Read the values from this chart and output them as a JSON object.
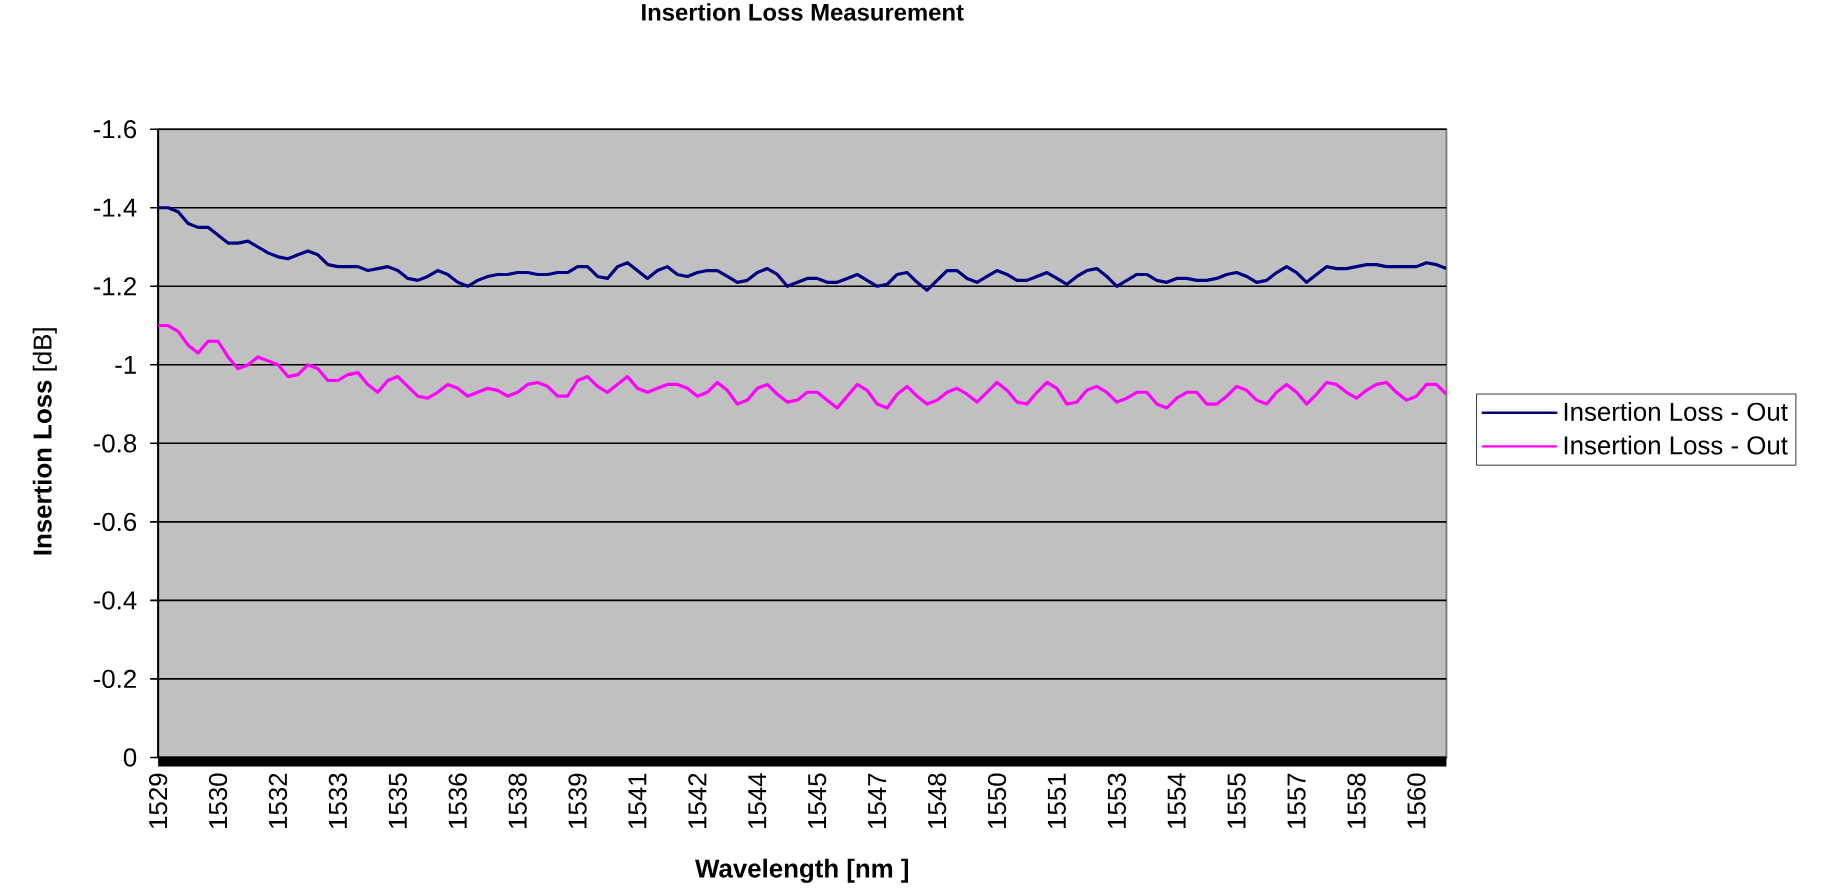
{
  "chart_data": {
    "type": "line",
    "title": "Insertion Loss Measurement",
    "xlabel": "Wavelength [nm ]",
    "ylabel": "**Insertion Loss** [dB]",
    "categories": [
      "1529",
      null,
      null,
      null,
      null,
      null,
      "1530",
      null,
      null,
      null,
      null,
      null,
      "1532",
      null,
      null,
      null,
      null,
      null,
      "1533",
      null,
      null,
      null,
      null,
      null,
      "1535",
      null,
      null,
      null,
      null,
      null,
      "1536",
      null,
      null,
      null,
      null,
      null,
      "1538",
      null,
      null,
      null,
      null,
      null,
      "1539",
      null,
      null,
      null,
      null,
      null,
      "1541",
      null,
      null,
      null,
      null,
      null,
      "1542",
      null,
      null,
      null,
      null,
      null,
      "1544",
      null,
      null,
      null,
      null,
      null,
      "1545",
      null,
      null,
      null,
      null,
      null,
      "1547",
      null,
      null,
      null,
      null,
      null,
      "1548",
      null,
      null,
      null,
      null,
      null,
      "1550",
      null,
      null,
      null,
      null,
      null,
      "1551",
      null,
      null,
      null,
      null,
      null,
      "1553",
      null,
      null,
      null,
      null,
      null,
      "1554",
      null,
      null,
      null,
      null,
      null,
      "1555",
      null,
      null,
      null,
      null,
      null,
      "1557",
      null,
      null,
      null,
      null,
      null,
      "1558",
      null,
      null,
      null,
      null,
      null,
      "1560",
      null,
      null,
      null
    ],
    "series": [
      {
        "name": "Insertion Loss - Out",
        "color": "#000080",
        "values": [
          -1.4,
          -1.4,
          -1.39,
          -1.36,
          -1.35,
          -1.35,
          -1.33,
          -1.31,
          -1.31,
          -1.315,
          -1.3,
          -1.285,
          -1.275,
          -1.27,
          -1.28,
          -1.29,
          -1.28,
          -1.255,
          -1.25,
          -1.25,
          -1.25,
          -1.24,
          -1.245,
          -1.25,
          -1.24,
          -1.22,
          -1.215,
          -1.225,
          -1.24,
          -1.23,
          -1.21,
          -1.2,
          -1.215,
          -1.225,
          -1.23,
          -1.23,
          -1.235,
          -1.235,
          -1.23,
          -1.23,
          -1.235,
          -1.235,
          -1.25,
          -1.25,
          -1.225,
          -1.22,
          -1.25,
          -1.26,
          -1.24,
          -1.22,
          -1.24,
          -1.25,
          -1.23,
          -1.225,
          -1.235,
          -1.24,
          -1.24,
          -1.225,
          -1.21,
          -1.215,
          -1.235,
          -1.245,
          -1.23,
          -1.2,
          -1.21,
          -1.22,
          -1.22,
          -1.21,
          -1.21,
          -1.22,
          -1.23,
          -1.215,
          -1.2,
          -1.205,
          -1.23,
          -1.235,
          -1.21,
          -1.19,
          -1.215,
          -1.24,
          -1.24,
          -1.22,
          -1.21,
          -1.225,
          -1.24,
          -1.23,
          -1.215,
          -1.215,
          -1.225,
          -1.235,
          -1.22,
          -1.205,
          -1.225,
          -1.24,
          -1.245,
          -1.225,
          -1.2,
          -1.215,
          -1.23,
          -1.23,
          -1.215,
          -1.21,
          -1.22,
          -1.22,
          -1.215,
          -1.215,
          -1.22,
          -1.23,
          -1.235,
          -1.225,
          -1.21,
          -1.215,
          -1.235,
          -1.25,
          -1.235,
          -1.21,
          -1.23,
          -1.25,
          -1.245,
          -1.245,
          -1.25,
          -1.255,
          -1.255,
          -1.25,
          -1.25,
          -1.25,
          -1.25,
          -1.26,
          -1.255,
          -1.245
        ]
      },
      {
        "name": "Insertion Loss - Out",
        "color": "#ff00ff",
        "values": [
          -1.1,
          -1.1,
          -1.085,
          -1.05,
          -1.03,
          -1.06,
          -1.06,
          -1.02,
          -0.99,
          -1.0,
          -1.02,
          -1.01,
          -1.0,
          -0.97,
          -0.975,
          -1.0,
          -0.99,
          -0.96,
          -0.96,
          -0.975,
          -0.98,
          -0.95,
          -0.93,
          -0.96,
          -0.97,
          -0.945,
          -0.92,
          -0.915,
          -0.93,
          -0.95,
          -0.94,
          -0.92,
          -0.93,
          -0.94,
          -0.935,
          -0.92,
          -0.93,
          -0.95,
          -0.955,
          -0.945,
          -0.92,
          -0.92,
          -0.96,
          -0.97,
          -0.945,
          -0.93,
          -0.95,
          -0.97,
          -0.94,
          -0.93,
          -0.94,
          -0.95,
          -0.95,
          -0.94,
          -0.92,
          -0.93,
          -0.955,
          -0.935,
          -0.9,
          -0.91,
          -0.94,
          -0.95,
          -0.925,
          -0.905,
          -0.91,
          -0.93,
          -0.93,
          -0.91,
          -0.89,
          -0.92,
          -0.95,
          -0.935,
          -0.9,
          -0.89,
          -0.925,
          -0.945,
          -0.92,
          -0.9,
          -0.91,
          -0.93,
          -0.94,
          -0.925,
          -0.905,
          -0.93,
          -0.955,
          -0.935,
          -0.905,
          -0.9,
          -0.93,
          -0.955,
          -0.94,
          -0.9,
          -0.905,
          -0.935,
          -0.945,
          -0.93,
          -0.905,
          -0.915,
          -0.93,
          -0.93,
          -0.9,
          -0.89,
          -0.915,
          -0.93,
          -0.93,
          -0.9,
          -0.9,
          -0.92,
          -0.945,
          -0.935,
          -0.91,
          -0.9,
          -0.93,
          -0.95,
          -0.93,
          -0.9,
          -0.925,
          -0.955,
          -0.95,
          -0.93,
          -0.915,
          -0.935,
          -0.95,
          -0.955,
          -0.93,
          -0.91,
          -0.92,
          -0.95,
          -0.95,
          -0.925
        ]
      }
    ],
    "ylim": [
      0,
      -1.6
    ],
    "yticks": [
      0,
      -0.2,
      -0.4,
      -0.6,
      -0.8,
      -1,
      -1.2,
      -1.4,
      -1.6
    ],
    "grid": "y",
    "legend": "right",
    "marker": "none",
    "line_style": "solid"
  }
}
